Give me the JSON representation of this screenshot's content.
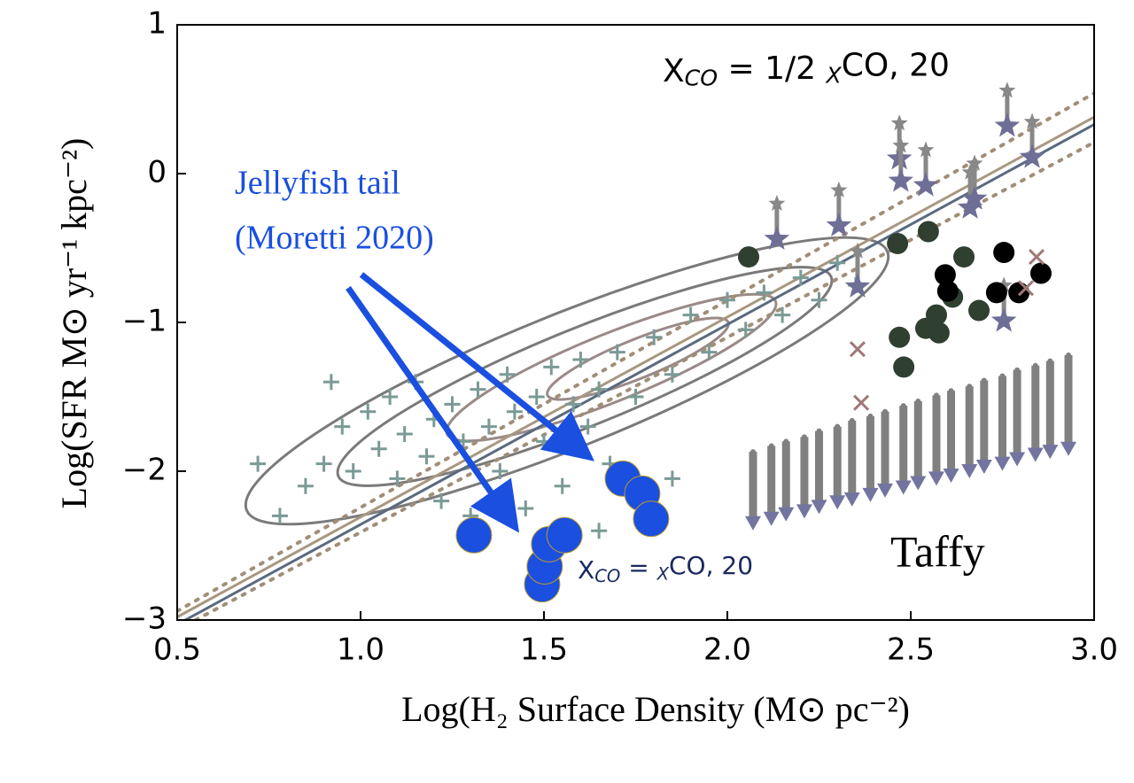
{
  "chart_data": {
    "type": "scatter",
    "xlabel": "Log(H₂ Surface Density (M⊙ pc⁻²)",
    "ylabel": "Log(SFR M⊙ yr⁻¹ kpc⁻²)",
    "xlim": [
      0.5,
      3.0
    ],
    "ylim": [
      -3,
      1
    ],
    "xticks": [
      {
        "value": 0.5,
        "label": "0.5"
      },
      {
        "value": 1,
        "label": "1.0"
      },
      {
        "value": 1.5,
        "label": "1.5"
      },
      {
        "value": 2,
        "label": "2.0"
      },
      {
        "value": 2.5,
        "label": "2.5"
      },
      {
        "value": 3,
        "label": "3.0"
      }
    ],
    "yticks": [
      1,
      0,
      {
        "value": -1,
        "label": "−1"
      },
      {
        "value": -2,
        "label": "−2"
      },
      {
        "value": -3,
        "label": "−3"
      }
    ],
    "annotations": {
      "jellyfish": [
        "Jellyfish tail",
        "(Moretti 2020)"
      ],
      "taffy": "Taffy",
      "xco_half": [
        "X",
        "CO",
        " = 1/2 ",
        "X",
        "CO, 20"
      ],
      "xco_full": [
        "X",
        "CO",
        " = ",
        "X",
        "CO, 20"
      ]
    },
    "lines": [
      {
        "color": "#5a6a80",
        "style": "solid",
        "x": [
          0.5,
          3.0
        ],
        "y": [
          -3.03,
          0.33
        ]
      },
      {
        "color": "#a89880",
        "style": "solid",
        "x": [
          0.5,
          3.0
        ],
        "y": [
          -2.98,
          0.38
        ]
      },
      {
        "color": "#a08e78",
        "style": "dotted",
        "x": [
          0.5,
          3.0
        ],
        "y": [
          -2.94,
          0.54
        ]
      },
      {
        "color": "#a08e78",
        "style": "dotted",
        "x": [
          0.55,
          3.0
        ],
        "y": [
          -3.0,
          0.21
        ]
      }
    ],
    "series": [
      {
        "marker": "plus",
        "color": "#7a9a96",
        "x": [
          0.78,
          0.85,
          0.9,
          0.95,
          0.98,
          1.02,
          1.05,
          1.08,
          1.1,
          1.12,
          1.15,
          1.18,
          1.2,
          1.22,
          1.25,
          1.28,
          1.3,
          1.32,
          1.35,
          1.38,
          1.4,
          1.42,
          1.45,
          1.48,
          1.5,
          1.52,
          1.55,
          1.58,
          1.6,
          1.62,
          1.65,
          1.68,
          1.7,
          1.75,
          1.8,
          1.85,
          1.9,
          1.95,
          2.0,
          2.05,
          2.1,
          2.15,
          2.2,
          2.25,
          2.3,
          2.35,
          0.72,
          1.65,
          1.85,
          0.92
        ],
        "y": [
          -2.3,
          -2.1,
          -1.95,
          -1.7,
          -2.0,
          -1.6,
          -1.85,
          -1.5,
          -2.05,
          -1.75,
          -1.4,
          -1.9,
          -1.65,
          -2.2,
          -1.55,
          -1.8,
          -2.3,
          -1.45,
          -1.7,
          -2.0,
          -1.35,
          -1.6,
          -2.25,
          -1.5,
          -1.8,
          -1.3,
          -2.1,
          -1.55,
          -1.25,
          -1.7,
          -1.45,
          -1.95,
          -1.2,
          -1.5,
          -1.1,
          -1.35,
          -0.95,
          -1.2,
          -0.85,
          -1.05,
          -0.8,
          -0.95,
          -0.7,
          -0.85,
          -0.6,
          -0.75,
          -1.95,
          -2.4,
          -2.05,
          -1.4
        ]
      },
      {
        "marker": "star",
        "color": "#6e6e96",
        "x": [
          2.135,
          2.304,
          2.355,
          2.469,
          2.473,
          2.541,
          2.662,
          2.674,
          2.763,
          2.831,
          2.754
        ],
        "y": [
          -0.44,
          -0.35,
          -0.76,
          0.1,
          -0.05,
          -0.08,
          -0.23,
          -0.17,
          0.32,
          0.11,
          -0.99
        ]
      },
      {
        "marker": "circle",
        "color": "#2f3f30",
        "x": [
          2.058,
          2.464,
          2.548,
          2.469,
          2.481,
          2.541,
          2.577,
          2.57,
          2.645,
          2.686,
          2.614
        ],
        "y": [
          -0.56,
          -0.47,
          -0.39,
          -1.1,
          -1.3,
          -1.04,
          -1.07,
          -0.95,
          -0.56,
          -0.92,
          -0.83
        ]
      },
      {
        "marker": "circle",
        "color": "#000000",
        "x": [
          2.754,
          2.594,
          2.601,
          2.734,
          2.795,
          2.855
        ],
        "y": [
          -0.53,
          -0.68,
          -0.79,
          -0.8,
          -0.8,
          -0.67
        ]
      },
      {
        "marker": "cross",
        "color": "#a07878",
        "x": [
          2.355,
          2.365,
          2.814,
          2.843
        ],
        "y": [
          -1.18,
          -1.54,
          -0.77,
          -0.56
        ]
      },
      {
        "marker": "bigcircle",
        "color": "#1a4fe0",
        "x": [
          1.309,
          1.495,
          1.502,
          1.514,
          1.556,
          1.715,
          1.768,
          1.792
        ],
        "y": [
          -2.43,
          -2.76,
          -2.64,
          -2.49,
          -2.43,
          -2.05,
          -2.15,
          -2.32
        ]
      }
    ],
    "limits": {
      "color": "#808080",
      "arrow_color": "#7474a0",
      "x": [
        2.07,
        2.12,
        2.16,
        2.21,
        2.25,
        2.3,
        2.34,
        2.39,
        2.43,
        2.48,
        2.52,
        2.57,
        2.61,
        2.66,
        2.7,
        2.75,
        2.79,
        2.84,
        2.88,
        2.93
      ],
      "top": [
        -1.87,
        -1.83,
        -1.8,
        -1.77,
        -1.73,
        -1.7,
        -1.66,
        -1.63,
        -1.6,
        -1.56,
        -1.53,
        -1.49,
        -1.46,
        -1.43,
        -1.39,
        -1.36,
        -1.32,
        -1.29,
        -1.26,
        -1.22
      ],
      "bottom": [
        -2.35,
        -2.32,
        -2.29,
        -2.27,
        -2.24,
        -2.21,
        -2.19,
        -2.16,
        -2.13,
        -2.11,
        -2.08,
        -2.05,
        -2.03,
        -2.0,
        -1.97,
        -1.95,
        -1.92,
        -1.89,
        -1.87,
        -1.85
      ]
    }
  }
}
